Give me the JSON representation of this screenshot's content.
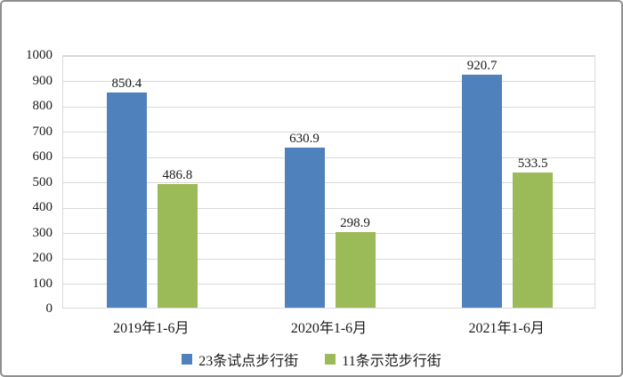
{
  "chart_data": {
    "type": "bar",
    "categories": [
      "2019年1-6月",
      "2020年1-6月",
      "2021年1-6月"
    ],
    "series": [
      {
        "name": "23条试点步行街",
        "color": "#4F81BD",
        "values": [
          850.4,
          630.9,
          920.7
        ]
      },
      {
        "name": "11条示范步行街",
        "color": "#9BBB59",
        "values": [
          486.8,
          298.9,
          533.5
        ]
      }
    ],
    "value_labels": [
      "850.4",
      "486.8",
      "630.9",
      "298.9",
      "920.7",
      "533.5"
    ],
    "title": "",
    "xlabel": "",
    "ylabel": "",
    "ylim": [
      0,
      1000
    ],
    "yticks": [
      0,
      100,
      200,
      300,
      400,
      500,
      600,
      700,
      800,
      900,
      1000
    ],
    "grid": true,
    "legend_position": "bottom",
    "colors": {
      "gridline": "#d9d9d9",
      "text": "#1a1a1a",
      "frame_border": "#8f8f8f",
      "background": "#ffffff"
    }
  }
}
